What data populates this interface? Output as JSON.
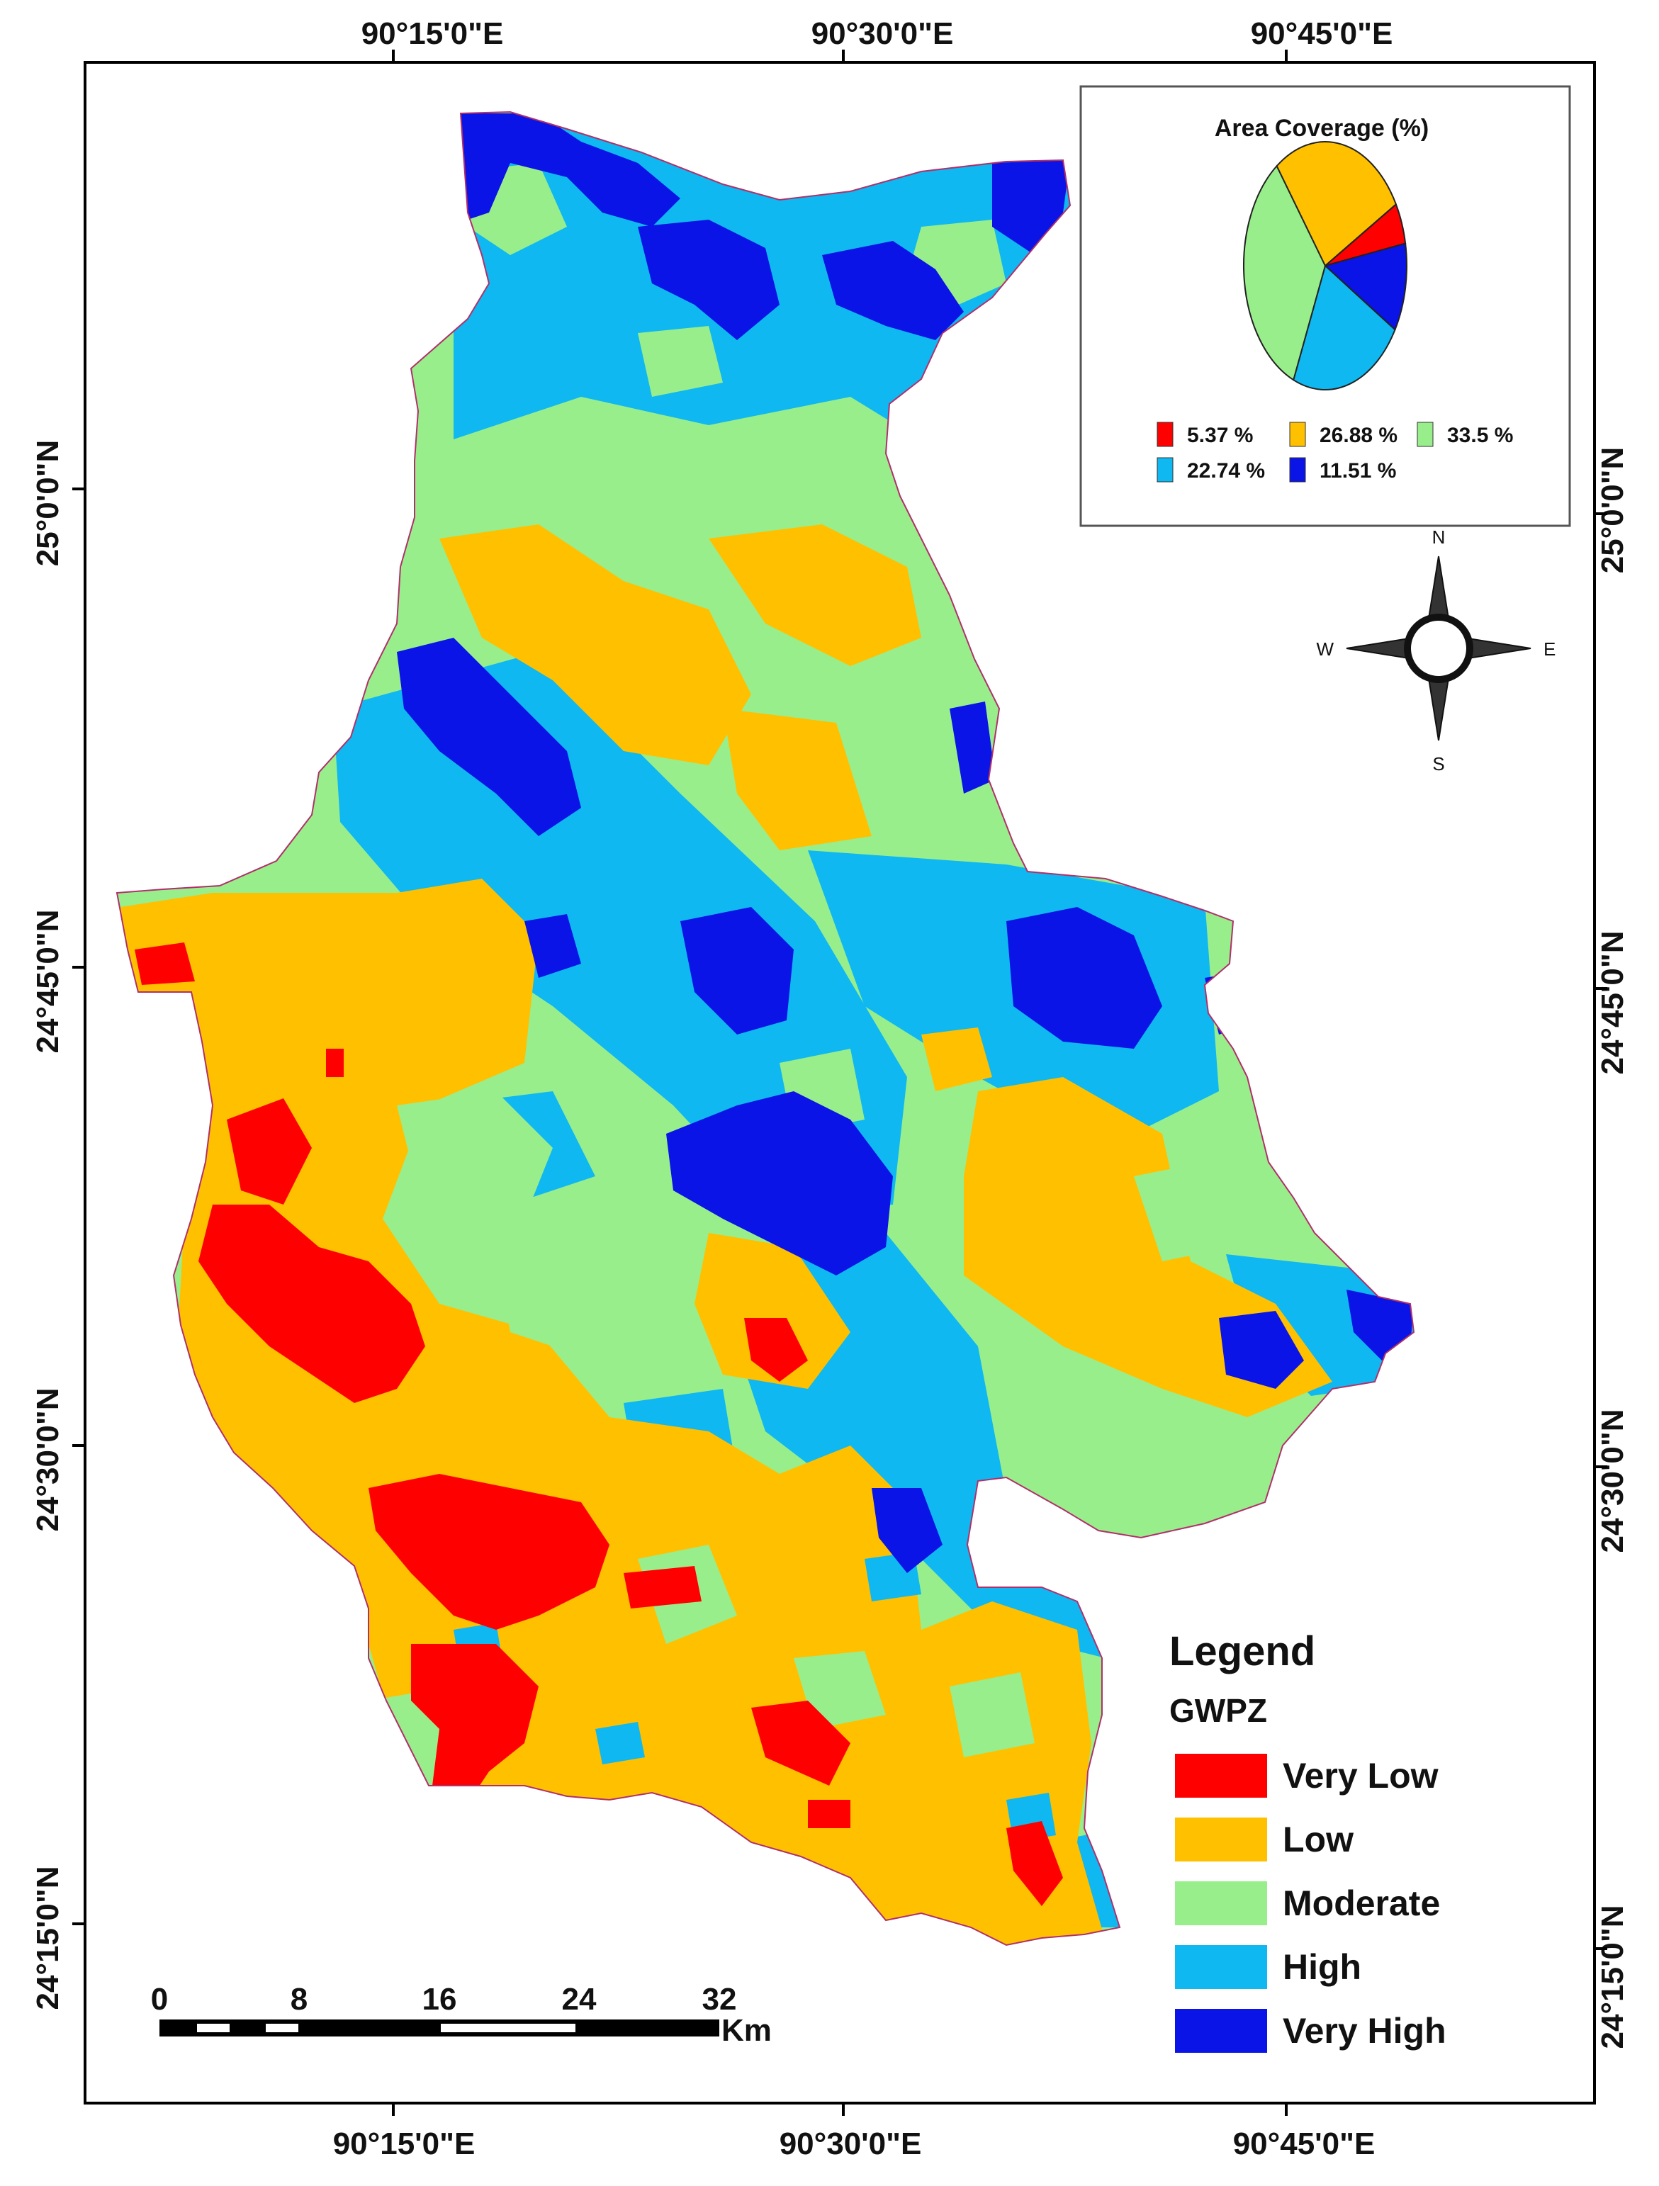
{
  "map": {
    "coords": {
      "top": [
        "90°15'0\"E",
        "90°30'0\"E",
        "90°45'0\"E"
      ],
      "bottom": [
        "90°15'0\"E",
        "90°30'0\"E",
        "90°45'0\"E"
      ],
      "left": [
        "25°0'0\"N",
        "24°45'0\"N",
        "24°30'0\"N",
        "24°15'0\"N"
      ],
      "right": [
        "25°0'0\"N",
        "24°45'0\"N",
        "24°30'0\"N",
        "24°15'0\"N"
      ]
    },
    "classes": {
      "very_low": "#ff0000",
      "low": "#ffc000",
      "moderate": "#99ee8c",
      "high": "#0fb8f0",
      "very_high": "#0a14e6"
    }
  },
  "inset": {
    "title": "Area Coverage (%)",
    "slices": [
      {
        "label": "5.37 %",
        "value": 5.37,
        "color": "#ff0000"
      },
      {
        "label": "26.88 %",
        "value": 26.88,
        "color": "#ffc000"
      },
      {
        "label": "33.5 %",
        "value": 33.5,
        "color": "#99ee8c"
      },
      {
        "label": "22.74 %",
        "value": 22.74,
        "color": "#0fb8f0"
      },
      {
        "label": "11.51 %",
        "value": 11.51,
        "color": "#0a14e6"
      }
    ]
  },
  "north_arrow": {
    "n": "N",
    "s": "S",
    "e": "E",
    "w": "W"
  },
  "scale_bar": {
    "ticks": [
      "0",
      "8",
      "16",
      "24",
      "32"
    ],
    "unit": "Km"
  },
  "legend": {
    "title": "Legend",
    "subtitle": "GWPZ",
    "items": [
      {
        "label": "Very Low",
        "color": "#ff0000"
      },
      {
        "label": "Low",
        "color": "#ffc000"
      },
      {
        "label": "Moderate",
        "color": "#99ee8c"
      },
      {
        "label": "High",
        "color": "#0fb8f0"
      },
      {
        "label": "Very High",
        "color": "#0a14e6"
      }
    ]
  }
}
